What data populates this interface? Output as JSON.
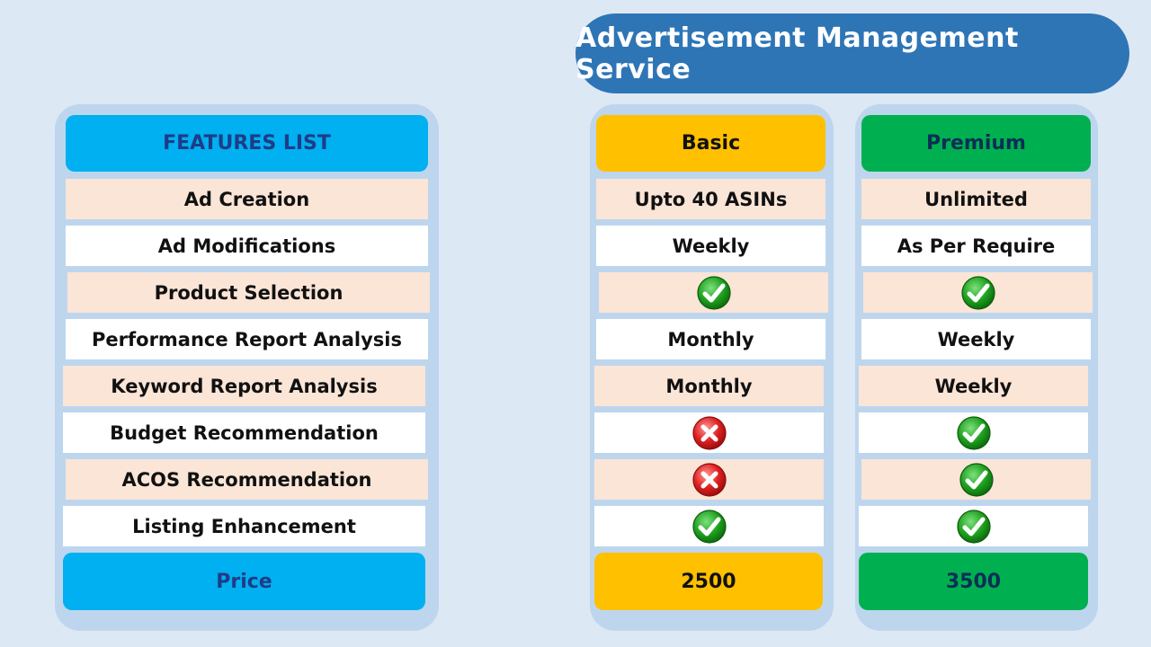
{
  "title": "Advertisement Management Service",
  "columns": {
    "features": "FEATURES LIST",
    "basic": "Basic",
    "premium": "Premium"
  },
  "rows": [
    {
      "feature": "Ad Creation",
      "basic": "Upto 40 ASINs",
      "premium": "Unlimited"
    },
    {
      "feature": "Ad Modifications",
      "basic": "Weekly",
      "premium": "As Per Require"
    },
    {
      "feature": "Product Selection",
      "basic_icon": "check-icon",
      "premium_icon": "check-icon"
    },
    {
      "feature": "Performance Report Analysis",
      "basic": "Monthly",
      "premium": "Weekly"
    },
    {
      "feature": "Keyword Report Analysis",
      "basic": "Monthly",
      "premium": "Weekly"
    },
    {
      "feature": "Budget Recommendation",
      "basic_icon": "cross-icon",
      "premium_icon": "check-icon"
    },
    {
      "feature": "ACOS Recommendation",
      "basic_icon": "cross-icon",
      "premium_icon": "check-icon"
    },
    {
      "feature": "Listing Enhancement",
      "basic_icon": "check-icon",
      "premium_icon": "check-icon"
    }
  ],
  "price": {
    "label": "Price",
    "basic": "2500",
    "premium": "3500"
  },
  "colors": {
    "background": "#dde8f5",
    "title_pill": "#2e75b6",
    "panel": "#bdd6ee",
    "features_header": "#00b0f0",
    "basic_header": "#ffc000",
    "premium_header": "#00b050",
    "row_pink": "#fbe5d6",
    "row_white": "#ffffff"
  }
}
